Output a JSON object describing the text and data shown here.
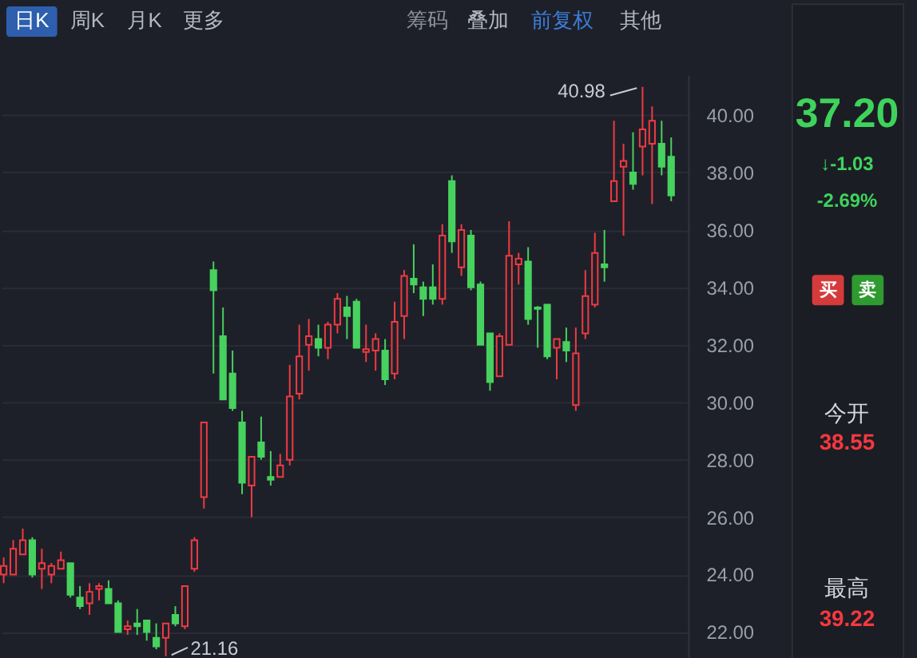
{
  "chart_data": [
    {
      "type": "other",
      "annotations": [
        "日K",
        "周K",
        "月K",
        "更多",
        "筹码",
        "叠加",
        "前复权",
        "其他"
      ]
    },
    {
      "type": "candlestick",
      "categories": [
        null,
        null,
        null,
        null,
        null,
        null,
        null,
        null,
        null,
        null,
        null,
        null,
        null,
        null,
        null,
        null,
        null,
        null,
        null,
        null,
        null,
        null,
        null,
        null,
        null,
        null,
        null,
        null,
        null,
        null,
        null,
        null,
        null,
        null,
        null,
        null,
        null,
        null,
        null,
        null,
        null,
        null,
        null,
        null,
        null,
        null,
        null,
        null,
        null,
        null,
        null,
        null,
        null,
        null,
        null,
        null,
        null,
        null,
        null,
        null,
        null,
        null,
        null,
        null,
        null,
        null,
        null,
        null,
        null,
        null,
        null
      ],
      "ohlc": [
        [
          24.0,
          24.6,
          23.7,
          24.3
        ],
        [
          24.0,
          25.2,
          24.0,
          24.9
        ],
        [
          24.7,
          25.6,
          24.7,
          25.2
        ],
        [
          25.2,
          25.3,
          23.9,
          24.0
        ],
        [
          24.2,
          24.9,
          23.5,
          24.4
        ],
        [
          24.0,
          24.4,
          23.7,
          24.3
        ],
        [
          24.2,
          24.8,
          24.2,
          24.5
        ],
        [
          24.4,
          24.4,
          23.2,
          23.3
        ],
        [
          23.2,
          23.6,
          22.8,
          22.9
        ],
        [
          23.0,
          23.7,
          22.6,
          23.4
        ],
        [
          23.5,
          23.7,
          23.1,
          23.6
        ],
        [
          23.5,
          23.8,
          23.0,
          23.0
        ],
        [
          23.0,
          23.1,
          22.0,
          22.0
        ],
        [
          22.1,
          22.4,
          21.9,
          22.2
        ],
        [
          22.3,
          22.8,
          21.9,
          22.2
        ],
        [
          22.4,
          22.4,
          21.7,
          22.0
        ],
        [
          21.8,
          22.3,
          21.4,
          21.5
        ],
        [
          21.8,
          22.3,
          21.16,
          22.3
        ],
        [
          22.6,
          22.9,
          22.2,
          22.3
        ],
        [
          22.2,
          23.6,
          22.1,
          23.6
        ],
        [
          24.2,
          25.3,
          24.1,
          25.2
        ],
        [
          26.7,
          29.3,
          26.3,
          29.3
        ],
        [
          34.6,
          34.9,
          31.0,
          33.9
        ],
        [
          32.3,
          33.3,
          30.1,
          30.1
        ],
        [
          31.0,
          31.8,
          29.7,
          29.8
        ],
        [
          29.3,
          29.7,
          26.8,
          27.2
        ],
        [
          27.1,
          28.1,
          26.0,
          28.1
        ],
        [
          28.6,
          29.5,
          28.0,
          28.1
        ],
        [
          27.4,
          28.3,
          27.1,
          27.3
        ],
        [
          27.4,
          28.2,
          27.4,
          27.8
        ],
        [
          28.0,
          31.3,
          27.8,
          30.2
        ],
        [
          30.3,
          32.7,
          30.1,
          31.6
        ],
        [
          32.0,
          32.9,
          31.1,
          32.3
        ],
        [
          32.2,
          32.7,
          31.6,
          31.9
        ],
        [
          31.9,
          32.8,
          31.5,
          32.7
        ],
        [
          32.7,
          33.8,
          32.4,
          33.6
        ],
        [
          33.3,
          33.7,
          32.2,
          33.0
        ],
        [
          33.5,
          33.6,
          31.9,
          31.9
        ],
        [
          31.75,
          32.7,
          31.4,
          31.85
        ],
        [
          31.8,
          32.4,
          31.1,
          32.2
        ],
        [
          31.8,
          32.2,
          30.6,
          30.8
        ],
        [
          31.0,
          33.5,
          30.8,
          32.8
        ],
        [
          33.0,
          34.6,
          32.2,
          34.4
        ],
        [
          34.3,
          35.5,
          33.8,
          34.1
        ],
        [
          34.0,
          34.2,
          33.0,
          33.6
        ],
        [
          34.0,
          34.8,
          33.4,
          33.6
        ],
        [
          33.6,
          36.2,
          33.4,
          35.8
        ],
        [
          37.7,
          37.9,
          35.2,
          35.6
        ],
        [
          34.7,
          36.2,
          34.4,
          36.0
        ],
        [
          35.8,
          36.0,
          33.9,
          34.0
        ],
        [
          34.1,
          34.2,
          32.0,
          32.0
        ],
        [
          32.4,
          32.4,
          30.4,
          30.7
        ],
        [
          30.9,
          32.4,
          30.9,
          32.3
        ],
        [
          32.0,
          36.3,
          32.0,
          35.1
        ],
        [
          34.8,
          35.2,
          34.1,
          35.0
        ],
        [
          34.9,
          35.4,
          32.7,
          32.9
        ],
        [
          33.3,
          33.35,
          31.9,
          33.25
        ],
        [
          33.4,
          33.4,
          31.5,
          31.6
        ],
        [
          31.9,
          32.2,
          30.8,
          32.2
        ],
        [
          32.1,
          32.6,
          31.4,
          31.8
        ],
        [
          29.9,
          32.6,
          29.7,
          31.7
        ],
        [
          32.4,
          34.6,
          32.2,
          33.7
        ],
        [
          33.4,
          35.9,
          33.3,
          35.2
        ],
        [
          34.8,
          36.0,
          34.2,
          34.7
        ],
        [
          37.0,
          39.8,
          37.0,
          37.7
        ],
        [
          38.2,
          39.0,
          35.8,
          38.4
        ],
        [
          38.0,
          39.4,
          37.4,
          37.6
        ],
        [
          38.9,
          40.98,
          37.9,
          39.5
        ],
        [
          39.0,
          40.3,
          36.9,
          39.8
        ],
        [
          39.0,
          39.8,
          37.9,
          38.2
        ],
        [
          38.55,
          39.22,
          37.0,
          37.2
        ]
      ],
      "colors": [
        "#f03a42",
        "#f03a42",
        "#f03a42",
        "#47d15e",
        "#f03a42",
        "#f03a42",
        "#f03a42",
        "#47d15e",
        "#47d15e",
        "#f03a42",
        "#f03a42",
        "#47d15e",
        "#47d15e",
        "#f03a42",
        "#47d15e",
        "#47d15e",
        "#47d15e",
        "#f03a42",
        "#47d15e",
        "#f03a42",
        "#f03a42",
        "#f03a42",
        "#47d15e",
        "#47d15e",
        "#47d15e",
        "#47d15e",
        "#f03a42",
        "#47d15e",
        "#47d15e",
        "#f03a42",
        "#f03a42",
        "#f03a42",
        "#f03a42",
        "#47d15e",
        "#f03a42",
        "#f03a42",
        "#47d15e",
        "#47d15e",
        "#f03a42",
        "#f03a42",
        "#47d15e",
        "#f03a42",
        "#f03a42",
        "#47d15e",
        "#47d15e",
        "#47d15e",
        "#f03a42",
        "#47d15e",
        "#f03a42",
        "#47d15e",
        "#47d15e",
        "#47d15e",
        "#f03a42",
        "#f03a42",
        "#f03a42",
        "#47d15e",
        "#47d15e",
        "#47d15e",
        "#f03a42",
        "#47d15e",
        "#f03a42",
        "#f03a42",
        "#f03a42",
        "#47d15e",
        "#f03a42",
        "#f03a42",
        "#47d15e",
        "#f03a42",
        "#f03a42",
        "#47d15e",
        "#47d15e"
      ],
      "ylim": [
        21.1,
        41.4
      ],
      "yticks": [
        {
          "value": 22,
          "label": "22.00"
        },
        {
          "value": 24,
          "label": "24.00"
        },
        {
          "value": 26,
          "label": "26.00"
        },
        {
          "value": 28,
          "label": "28.00"
        },
        {
          "value": 30,
          "label": "30.00"
        },
        {
          "value": 32,
          "label": "32.00"
        },
        {
          "value": 34,
          "label": "34.00"
        },
        {
          "value": 36,
          "label": "36.00"
        },
        {
          "value": 38,
          "label": "38.00"
        },
        {
          "value": 40,
          "label": "40.00"
        }
      ],
      "grid": "y",
      "tick_labels": "y",
      "annotations": [
        "40.98",
        "21.16"
      ]
    },
    {
      "type": "other",
      "annotations": [
        "37.20",
        "↓-1.03",
        "-2.69%",
        "买",
        "卖",
        "今开",
        "38.55",
        "最高",
        "39.22"
      ]
    }
  ]
}
